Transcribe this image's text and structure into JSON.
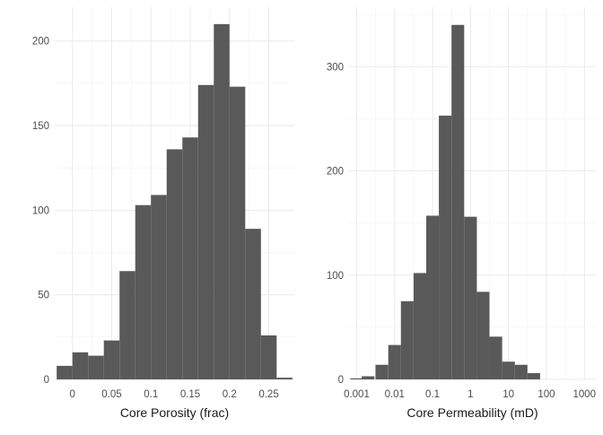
{
  "chart_data": [
    {
      "type": "bar",
      "title": "",
      "xlabel": "Core Porosity (frac)",
      "ylabel": "",
      "bar_color": "#595959",
      "grid": true,
      "xlim": [
        -0.0225,
        0.2825
      ],
      "ylim": [
        0,
        220
      ],
      "x_ticks": [
        0,
        0.05,
        0.1,
        0.15,
        0.2,
        0.25
      ],
      "x_tick_labels": [
        "0",
        "0.05",
        "0.1",
        "0.15",
        "0.2",
        "0.25"
      ],
      "y_ticks": [
        0,
        50,
        100,
        150,
        200
      ],
      "y_tick_labels": [
        "0",
        "50",
        "100",
        "150",
        "200"
      ],
      "bin_width": 0.02,
      "bins": [
        {
          "x": -0.01,
          "count": 8
        },
        {
          "x": 0.01,
          "count": 16
        },
        {
          "x": 0.03,
          "count": 14
        },
        {
          "x": 0.05,
          "count": 23
        },
        {
          "x": 0.07,
          "count": 64
        },
        {
          "x": 0.09,
          "count": 103
        },
        {
          "x": 0.11,
          "count": 109
        },
        {
          "x": 0.13,
          "count": 136
        },
        {
          "x": 0.15,
          "count": 143
        },
        {
          "x": 0.17,
          "count": 174
        },
        {
          "x": 0.19,
          "count": 210
        },
        {
          "x": 0.21,
          "count": 173
        },
        {
          "x": 0.23,
          "count": 89
        },
        {
          "x": 0.25,
          "count": 26
        },
        {
          "x": 0.27,
          "count": 1
        }
      ]
    },
    {
      "type": "bar",
      "title": "",
      "xlabel": "Core Permeability (mD)",
      "ylabel": "",
      "bar_color": "#595959",
      "grid": true,
      "x_scale": "log10",
      "xlim": [
        0.000631,
        2000
      ],
      "ylim": [
        0,
        357
      ],
      "x_ticks": [
        0.001,
        0.01,
        0.1,
        1,
        10,
        100,
        1000
      ],
      "x_tick_labels": [
        "0.001",
        "0.01",
        "0.1",
        "1",
        "10",
        "100",
        "1000"
      ],
      "y_ticks": [
        0,
        100,
        200,
        300
      ],
      "y_tick_labels": [
        "0",
        "100",
        "200",
        "300"
      ],
      "bins": [
        {
          "x": 0.001,
          "count": 1
        },
        {
          "x": 0.002,
          "count": 3
        },
        {
          "x": 0.0046,
          "count": 14
        },
        {
          "x": 0.01,
          "count": 33
        },
        {
          "x": 0.0215,
          "count": 75
        },
        {
          "x": 0.0464,
          "count": 102
        },
        {
          "x": 0.1,
          "count": 157
        },
        {
          "x": 0.215,
          "count": 253
        },
        {
          "x": 0.464,
          "count": 340
        },
        {
          "x": 1,
          "count": 156
        },
        {
          "x": 2.15,
          "count": 84
        },
        {
          "x": 4.64,
          "count": 41
        },
        {
          "x": 10,
          "count": 17
        },
        {
          "x": 21.5,
          "count": 14
        },
        {
          "x": 46.4,
          "count": 6
        }
      ]
    }
  ]
}
